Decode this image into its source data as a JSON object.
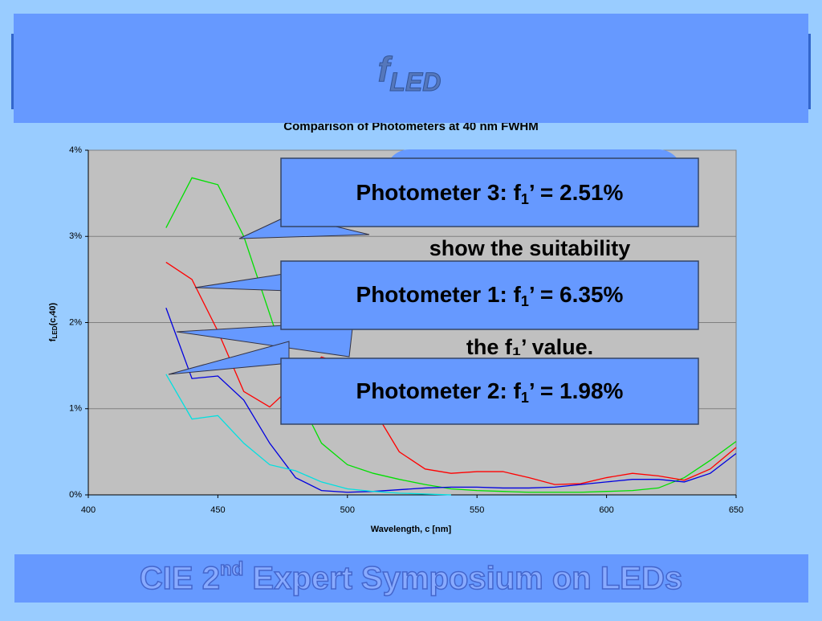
{
  "slide": {
    "header": {
      "main": "f",
      "sub": "LED"
    },
    "footer": {
      "pre": "CIE 2",
      "sup": "nd",
      "post": " Expert Symposium on LEDs"
    },
    "hidden_lines": [
      "show the suitability",
      "the f₁’ value."
    ],
    "callouts": [
      {
        "pre": "Photometer 3: f",
        "sub": "1",
        "post": "’ = 2.51%"
      },
      {
        "pre": "Photometer 1: f",
        "sub": "1",
        "post": "’ = 6.35%"
      },
      {
        "pre": "Photometer 2: f",
        "sub": "1",
        "post": "’ = 1.98%"
      }
    ]
  },
  "chart_data": {
    "type": "line",
    "title": "Comparison of Photometers at 40 nm FWHM",
    "x_label": "Wavelength, c [nm]",
    "y_label": {
      "main": "f",
      "sub": "LED",
      "rest": "(c,40)"
    },
    "x": [
      430,
      440,
      450,
      460,
      470,
      480,
      490,
      500,
      510,
      520,
      530,
      540,
      550,
      560,
      570,
      580,
      590,
      600,
      610,
      620,
      630,
      640,
      650
    ],
    "series": [
      {
        "color": "#00e000",
        "values": [
          3.1,
          3.68,
          3.6,
          3.0,
          2.1,
          1.2,
          0.6,
          0.35,
          0.25,
          0.18,
          0.12,
          0.07,
          0.05,
          0.04,
          0.03,
          0.03,
          0.03,
          0.04,
          0.05,
          0.08,
          0.2,
          0.4,
          0.62
        ]
      },
      {
        "color": "#ff0000",
        "values": [
          2.7,
          2.5,
          1.9,
          1.2,
          1.02,
          1.3,
          1.6,
          1.5,
          1.0,
          0.5,
          0.3,
          0.25,
          0.27,
          0.27,
          0.2,
          0.12,
          0.13,
          0.2,
          0.25,
          0.22,
          0.17,
          0.3,
          0.55
        ]
      },
      {
        "color": "#0000e0",
        "values": [
          2.17,
          1.35,
          1.38,
          1.1,
          0.6,
          0.2,
          0.05,
          0.03,
          0.04,
          0.06,
          0.08,
          0.09,
          0.09,
          0.08,
          0.08,
          0.09,
          0.12,
          0.15,
          0.18,
          0.18,
          0.15,
          0.25,
          0.48
        ]
      },
      {
        "color": "#00e0e0",
        "values": [
          1.4,
          0.88,
          0.92,
          0.6,
          0.35,
          0.28,
          0.15,
          0.07,
          0.04,
          0.02,
          0.01,
          0.0,
          null,
          null,
          null,
          null,
          null,
          null,
          null,
          null,
          null,
          null,
          null
        ]
      }
    ],
    "xlim": [
      400,
      650
    ],
    "xticks": [
      400,
      450,
      500,
      550,
      600,
      650
    ],
    "ylim": [
      0,
      4
    ],
    "yticks": [
      {
        "value": 0,
        "label": "0%"
      },
      {
        "value": 1,
        "label": "1%"
      },
      {
        "value": 2,
        "label": "2%"
      },
      {
        "value": 3,
        "label": "3%"
      },
      {
        "value": 4,
        "label": "4%"
      }
    ],
    "grid": true,
    "plot_color": "#c0c0c0"
  }
}
